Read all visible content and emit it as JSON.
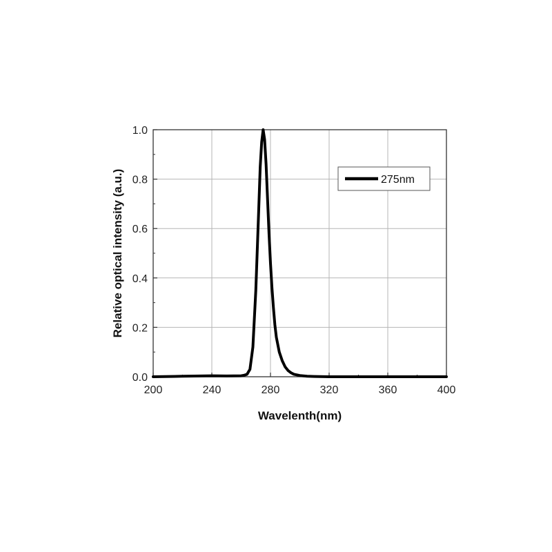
{
  "chart_data": {
    "type": "line",
    "title": "",
    "xlabel": "Wavelenth(nm)",
    "ylabel": "Relative optical intensity (a.u.)",
    "xlim": [
      200,
      400
    ],
    "ylim": [
      0,
      1.0
    ],
    "x_ticks": [
      "200",
      "240",
      "280",
      "320",
      "360",
      "400"
    ],
    "y_ticks": [
      "0.0",
      "0.2",
      "0.4",
      "0.6",
      "0.8",
      "1.0"
    ],
    "grid": true,
    "legend_position": "top-right",
    "series": [
      {
        "name": "275nm",
        "color": "#000000",
        "x": [
          200,
          220,
          240,
          250,
          260,
          262,
          264,
          266,
          268,
          270,
          272,
          273,
          274,
          275,
          276,
          277,
          278,
          279,
          280,
          281,
          282,
          283,
          284,
          286,
          288,
          290,
          292,
          294,
          296,
          300,
          305,
          310,
          320,
          340,
          360,
          380,
          400
        ],
        "y": [
          0.0,
          0.002,
          0.004,
          0.003,
          0.004,
          0.006,
          0.01,
          0.03,
          0.12,
          0.35,
          0.68,
          0.85,
          0.95,
          1.0,
          0.96,
          0.86,
          0.72,
          0.58,
          0.46,
          0.36,
          0.28,
          0.21,
          0.16,
          0.1,
          0.065,
          0.04,
          0.025,
          0.016,
          0.01,
          0.005,
          0.002,
          0.001,
          0.0,
          0.0,
          0.0,
          0.0,
          0.0
        ]
      }
    ]
  }
}
